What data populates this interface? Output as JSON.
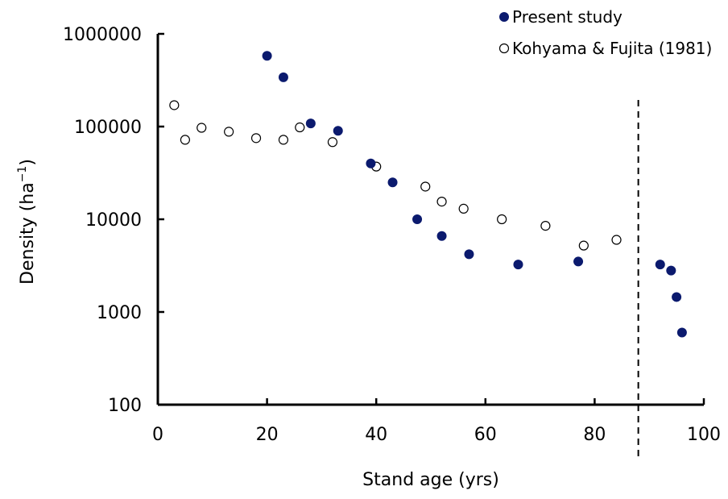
{
  "chart_data": {
    "type": "scatter",
    "xlabel": "Stand age (yrs)",
    "ylabel": {
      "main": "Density (ha",
      "sup": "−1",
      "close": ")"
    },
    "x_scale": "linear",
    "y_scale": "log",
    "xlim": [
      0,
      100
    ],
    "ylim": [
      100,
      1000000
    ],
    "x_ticks": [
      "0",
      "20",
      "40",
      "60",
      "80",
      "100"
    ],
    "y_ticks": [
      "100",
      "1000",
      "10000",
      "100000",
      "1000000"
    ],
    "grid": false,
    "legend_position": "top-right",
    "reference_line": {
      "x": 88,
      "style": "dashed"
    },
    "series": [
      {
        "name": "Present study",
        "marker": "filled-circle",
        "color": "#0b1a6e",
        "x": [
          20,
          23,
          28,
          33,
          39,
          43,
          47.5,
          52,
          57,
          66,
          77,
          92,
          94,
          95,
          96
        ],
        "y": [
          580000,
          340000,
          108000,
          90000,
          40000,
          25000,
          10000,
          6600,
          4200,
          3250,
          3500,
          3250,
          2800,
          1450,
          600
        ]
      },
      {
        "name": "Kohyama & Fujita (1981)",
        "marker": "open-circle",
        "color": "#000000",
        "x": [
          3,
          5,
          8,
          13,
          18,
          23,
          26,
          32,
          40,
          49,
          52,
          56,
          63,
          71,
          78,
          84
        ],
        "y": [
          170000,
          72000,
          97000,
          88000,
          75000,
          72000,
          98000,
          68000,
          37000,
          22500,
          15500,
          13000,
          10000,
          8500,
          5200,
          6000
        ]
      }
    ]
  }
}
